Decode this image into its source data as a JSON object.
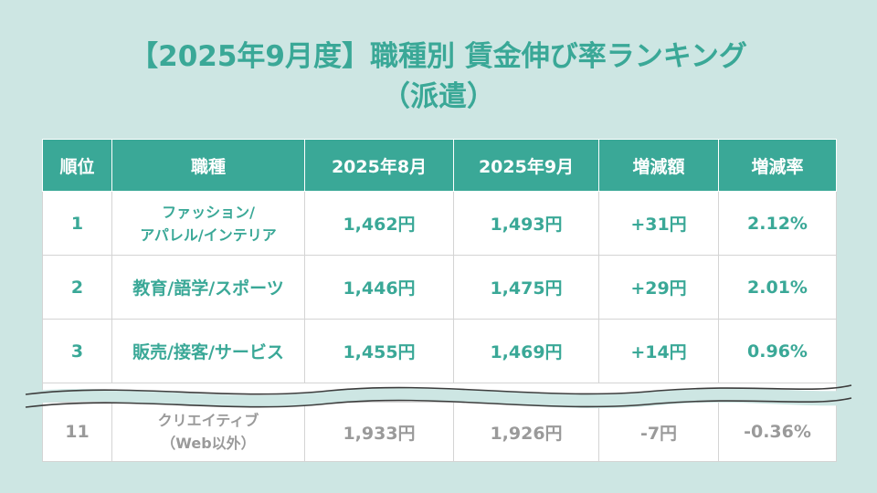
{
  "title": {
    "line1": "【2025年9月度】職種別 賃金伸び率ランキング",
    "line2": "（派遣）"
  },
  "table": {
    "headers": [
      "順位",
      "職種",
      "2025年8月",
      "2025年9月",
      "増減額",
      "増減率"
    ],
    "rows": [
      {
        "rank": "1",
        "job_line1": "ファッション/",
        "job_line2": "アパレル/インテリア",
        "aug": "1,462円",
        "sep": "1,493円",
        "diff": "+31円",
        "rate": "2.12%"
      },
      {
        "rank": "2",
        "job": "教育/語学/スポーツ",
        "aug": "1,446円",
        "sep": "1,475円",
        "diff": "+29円",
        "rate": "2.01%"
      },
      {
        "rank": "3",
        "job": "販売/接客/サービス",
        "aug": "1,455円",
        "sep": "1,469円",
        "diff": "+14円",
        "rate": "0.96%"
      },
      {
        "rank": "11",
        "job_line1": "クリエイティブ",
        "job_line2": "（Web以外）",
        "aug": "1,933円",
        "sep": "1,926円",
        "diff": "-7円",
        "rate": "-0.36%"
      }
    ]
  },
  "colors": {
    "accent": "#3aa897",
    "background": "#cde6e3",
    "muted_text": "#9a9a9a"
  }
}
